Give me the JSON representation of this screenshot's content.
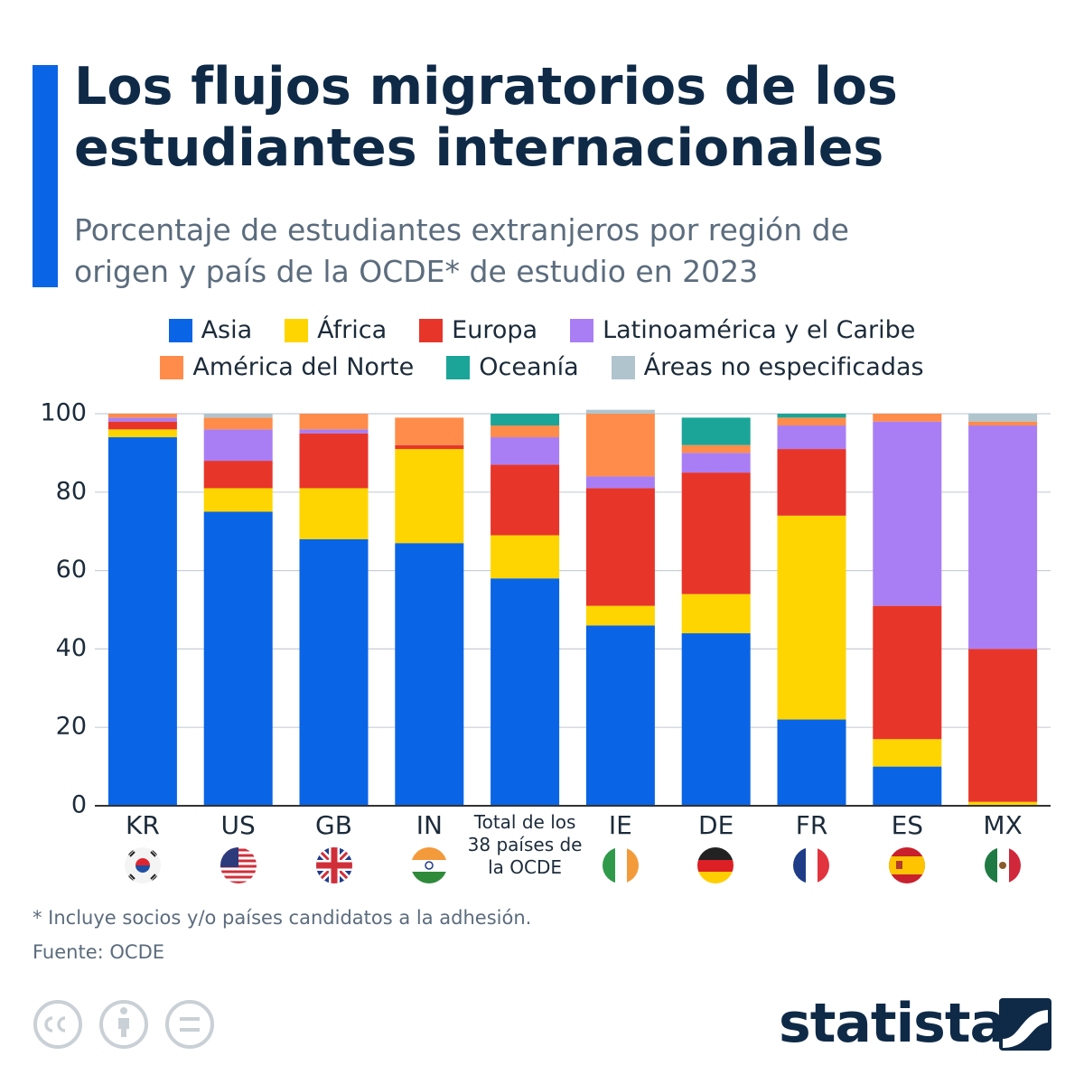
{
  "chart_data": {
    "type": "stacked_bar",
    "title": "Los flujos migratorios de los estudiantes internacionales",
    "subtitle": "Porcentaje de estudiantes extranjeros por región de origen y país de la OCDE* de estudio en 2023",
    "categories": [
      "KR",
      "US",
      "GB",
      "IN",
      "Total de los 38 países de la OCDE",
      "IE",
      "DE",
      "FR",
      "ES",
      "MX"
    ],
    "series": [
      {
        "name": "Asia",
        "color": "#0a64e6",
        "values": [
          94,
          75,
          68,
          67,
          58,
          46,
          44,
          22,
          10,
          0
        ]
      },
      {
        "name": "África",
        "color": "#ffd500",
        "values": [
          2,
          6,
          13,
          24,
          11,
          5,
          10,
          52,
          7,
          1
        ]
      },
      {
        "name": "Europa",
        "color": "#e8352a",
        "values": [
          2,
          7,
          14,
          1,
          18,
          30,
          31,
          17,
          34,
          39
        ]
      },
      {
        "name": "Latinoamérica y el Caribe",
        "color": "#a97ef5",
        "values": [
          1,
          8,
          1,
          0,
          7,
          3,
          5,
          6,
          47,
          57
        ]
      },
      {
        "name": "América del Norte",
        "color": "#ff8c4a",
        "values": [
          1,
          3,
          4,
          7,
          3,
          16,
          2,
          2,
          2,
          1
        ]
      },
      {
        "name": "Oceanía",
        "color": "#1aa598",
        "values": [
          0,
          0,
          0,
          0,
          3,
          0,
          7,
          1,
          0,
          0
        ]
      },
      {
        "name": "Áreas no especificadas",
        "color": "#b0c4ce",
        "values": [
          0,
          1,
          0,
          0,
          0,
          1,
          0,
          0,
          0,
          2
        ]
      }
    ],
    "ylim": [
      0,
      100
    ],
    "yticks": [
      0,
      20,
      40,
      60,
      80,
      100
    ],
    "grid": true,
    "footnote": "* Incluye socios y/o países candidatos a la adhesión.",
    "source": "Fuente: OCDE",
    "brand": "statista"
  }
}
